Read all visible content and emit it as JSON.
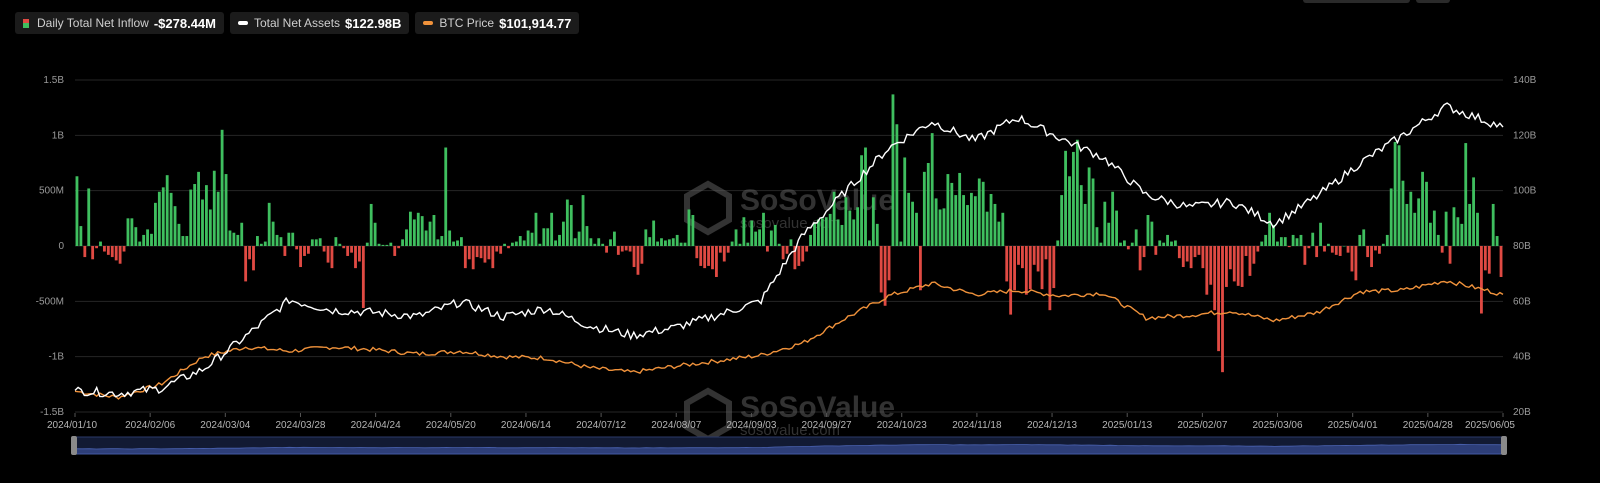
{
  "legend": {
    "inflow_label": "Daily Total Net Inflow",
    "inflow_value": "-$278.44M",
    "assets_label": "Total Net Assets",
    "assets_value": "$122.98B",
    "btc_label": "BTC Price",
    "btc_value": "$101,914.77"
  },
  "watermark": {
    "brand": "SoSoValue",
    "url": "sosovalue.com"
  },
  "colors": {
    "positive": "#3fbf5f",
    "negative": "#e04a43",
    "assets_line": "#ffffff",
    "btc_line": "#f0923b",
    "navigator": "#2d3e78"
  },
  "chart_data": {
    "type": "bar",
    "x_tick_labels": [
      "2024/01/10",
      "2024/02/06",
      "2024/03/04",
      "2024/03/28",
      "2024/04/24",
      "2024/05/20",
      "2024/06/14",
      "2024/07/12",
      "2024/08/07",
      "2024/09/03",
      "2024/09/27",
      "2024/10/23",
      "2024/11/18",
      "2024/12/13",
      "2025/01/13",
      "2025/02/07",
      "2025/03/06",
      "2025/04/01",
      "2025/04/28",
      "2025/06/05"
    ],
    "y_left_ticks": [
      "1.5B",
      "1B",
      "500M",
      "0",
      "-500M",
      "-1B",
      "-1.5B"
    ],
    "y_left_range": [
      -1.5,
      1.5
    ],
    "y_left_unit": "B",
    "y_right_ticks": [
      "140B",
      "120B",
      "100B",
      "80B",
      "60B",
      "40B",
      "20B"
    ],
    "y_right_range": [
      20,
      140
    ],
    "grid": true,
    "series": [
      {
        "name": "Daily Total Net Inflow",
        "type": "bar",
        "unit": "B USD",
        "values": [
          0.63,
          0.18,
          -0.1,
          0.52,
          -0.12,
          -0.02,
          0.04,
          -0.05,
          -0.08,
          -0.1,
          -0.13,
          -0.16,
          -0.05,
          0.25,
          0.25,
          0.17,
          0.04,
          0.1,
          0.15,
          0.11,
          0.39,
          0.49,
          0.53,
          0.64,
          0.48,
          0.36,
          0.2,
          0.09,
          0.09,
          0.51,
          0.56,
          0.67,
          0.42,
          0.55,
          0.33,
          0.68,
          0.49,
          1.05,
          0.65,
          0.14,
          0.12,
          0.1,
          0.21,
          -0.32,
          -0.12,
          -0.22,
          0.09,
          0.02,
          0.04,
          0.39,
          0.22,
          0.1,
          0.08,
          -0.09,
          0.12,
          0.12,
          -0.03,
          -0.19,
          -0.09,
          -0.07,
          0.06,
          0.06,
          0.07,
          -0.05,
          -0.15,
          -0.2,
          0.08,
          0.02,
          -0.02,
          -0.09,
          -0.06,
          -0.2,
          -0.14,
          -0.56,
          0.03,
          0.38,
          0.21,
          0.02,
          0.01,
          0.01,
          0.03,
          -0.09,
          -0.02,
          0.06,
          0.15,
          0.31,
          0.24,
          0.3,
          0.27,
          0.14,
          0.22,
          0.28,
          0.06,
          0.09,
          0.89,
          0.14,
          0.04,
          0.05,
          0.08,
          -0.2,
          -0.12,
          -0.21,
          -0.1,
          -0.11,
          -0.15,
          -0.12,
          -0.2,
          -0.05,
          -0.07,
          0.02,
          -0.02,
          0.03,
          0.04,
          0.09,
          0.05,
          0.14,
          0.12,
          0.3,
          0.02,
          0.16,
          0.16,
          0.3,
          0.05,
          0.1,
          0.22,
          0.42,
          0.37,
          0.07,
          0.13,
          0.46,
          0.18,
          0.07,
          0.02,
          0.07,
          0.02,
          -0.06,
          0.06,
          0.13,
          -0.08,
          -0.05,
          -0.04,
          -0.05,
          -0.19,
          -0.26,
          -0.16,
          0.15,
          0.08,
          0.23,
          0.04,
          0.07,
          0.05,
          0.06,
          0.07,
          0.1,
          0.03,
          0.03,
          0.33,
          0.28,
          -0.11,
          -0.18,
          -0.2,
          -0.18,
          -0.21,
          -0.28,
          -0.06,
          -0.14,
          -0.06,
          0.04,
          0.15,
          0.02,
          0.26,
          0.03,
          0.23,
          0.13,
          0.15,
          0.3,
          -0.05,
          0.14,
          0.19,
          0.02,
          -0.12,
          -0.07,
          0.06,
          -0.21,
          -0.18,
          -0.14,
          -0.05,
          0.1,
          0.21,
          0.24,
          0.25,
          0.26,
          0.29,
          0.49,
          0.24,
          0.19,
          0.44,
          0.32,
          0.24,
          0.35,
          0.82,
          0.89,
          0.05,
          0.44,
          0.2,
          -0.42,
          -0.54,
          -0.31,
          1.37,
          1.1,
          0.04,
          0.8,
          0.48,
          0.4,
          0.3,
          -0.4,
          0.67,
          0.75,
          1.02,
          0.43,
          0.33,
          0.34,
          0.65,
          0.57,
          0.46,
          0.66,
          0.46,
          0.37,
          0.48,
          0.45,
          0.61,
          0.58,
          0.31,
          0.47,
          0.38,
          0.22,
          0.3,
          -0.32,
          -0.62,
          -0.4,
          -0.17,
          -0.2,
          -0.44,
          -0.39,
          -0.17,
          -0.23,
          -0.39,
          -0.12,
          -0.58,
          -0.38,
          0.05,
          0.46,
          0.86,
          0.63,
          0.85,
          0.96,
          0.55,
          0.38,
          0.71,
          0.61,
          0.17,
          0.03,
          0.4,
          0.21,
          0.49,
          0.32,
          0.03,
          0.05,
          -0.03,
          0.03,
          0.15,
          -0.22,
          -0.1,
          0.28,
          0.22,
          -0.08,
          0.05,
          0.03,
          0.1,
          0.04,
          0.05,
          -0.11,
          -0.19,
          -0.14,
          -0.2,
          -0.1,
          -0.08,
          -0.2,
          -0.44,
          -0.35,
          -0.58,
          -0.95,
          -1.14,
          -0.37,
          -0.21,
          -0.32,
          -0.36,
          -0.37,
          -0.09,
          -0.27,
          -0.16,
          -0.05,
          0.04,
          0.1,
          0.3,
          0.19,
          0.04,
          0.08,
          0.08,
          -0.01,
          0.1,
          0.07,
          0.1,
          -0.17,
          -0.02,
          0.12,
          -0.1,
          0.21,
          -0.05,
          0.02,
          -0.06,
          -0.08,
          -0.09,
          0.0,
          -0.06,
          -0.23,
          -0.31,
          0.1,
          0.15,
          -0.1,
          -0.19,
          -0.04,
          -0.07,
          0.02,
          0.1,
          0.52,
          0.94,
          0.91,
          0.59,
          0.38,
          0.49,
          0.3,
          0.43,
          0.67,
          0.58,
          0.21,
          0.32,
          0.1,
          -0.06,
          0.31,
          -0.16,
          0.35,
          0.26,
          0.2,
          0.93,
          0.38,
          0.62,
          0.3,
          -0.61,
          -0.22,
          -0.25,
          0.38,
          0.09,
          -0.28
        ]
      },
      {
        "name": "Total Net Assets",
        "type": "line",
        "unit": "B USD",
        "x": [
          0,
          0.03,
          0.06,
          0.09,
          0.12,
          0.15,
          0.18,
          0.21,
          0.24,
          0.27,
          0.3,
          0.33,
          0.36,
          0.39,
          0.42,
          0.45,
          0.48,
          0.51,
          0.54,
          0.57,
          0.6,
          0.63,
          0.66,
          0.69,
          0.72,
          0.75,
          0.78,
          0.81,
          0.84,
          0.87,
          0.9,
          0.93,
          0.96,
          1.0
        ],
        "values": [
          27.8,
          26.7,
          28.5,
          35.5,
          47.5,
          60.5,
          56.8,
          56.0,
          54.5,
          59.8,
          54.4,
          57.5,
          51.2,
          47.7,
          50.5,
          55.0,
          60.0,
          84.0,
          100.0,
          115.5,
          125.0,
          118.0,
          126.5,
          119.0,
          112.0,
          98.5,
          94.0,
          96.0,
          88.0,
          98.0,
          110.0,
          120.0,
          130.5,
          122.98
        ]
      },
      {
        "name": "BTC Price",
        "type": "line",
        "unit": "K USD (plotted on right axis scale)",
        "x": [
          0,
          0.03,
          0.06,
          0.09,
          0.12,
          0.15,
          0.18,
          0.21,
          0.24,
          0.27,
          0.3,
          0.33,
          0.36,
          0.39,
          0.42,
          0.45,
          0.48,
          0.51,
          0.54,
          0.57,
          0.6,
          0.63,
          0.66,
          0.69,
          0.72,
          0.75,
          0.78,
          0.81,
          0.84,
          0.87,
          0.9,
          0.93,
          0.96,
          1.0
        ],
        "values": [
          27.5,
          25.3,
          30.0,
          40.0,
          43.5,
          42.0,
          43.5,
          42.5,
          41.0,
          42.0,
          40.0,
          39.5,
          36.0,
          34.3,
          36.5,
          38.5,
          40.5,
          45.0,
          54.0,
          62.0,
          66.5,
          62.5,
          64.0,
          62.0,
          63.0,
          54.0,
          55.0,
          56.5,
          53.0,
          56.0,
          63.5,
          64.0,
          67.5,
          62.5
        ]
      }
    ]
  }
}
